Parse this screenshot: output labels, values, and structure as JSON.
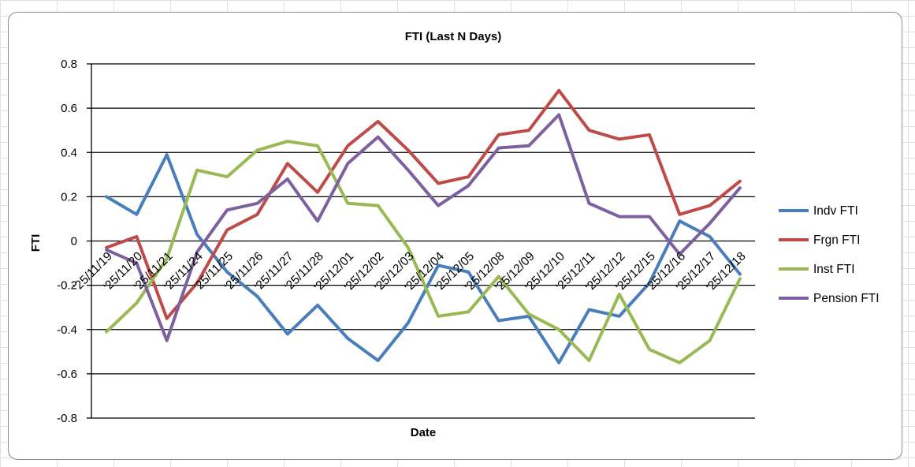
{
  "chart_data": {
    "type": "line",
    "title": "FTI (Last N Days)",
    "xlabel": "Date",
    "ylabel": "FTI",
    "ylim": [
      -0.8,
      0.8
    ],
    "yticks": [
      "0.8",
      "0.6",
      "0.4",
      "0.2",
      "0",
      "-0.2",
      "-0.4",
      "-0.6",
      "-0.8"
    ],
    "ytick_values": [
      0.8,
      0.6,
      0.4,
      0.2,
      0,
      -0.2,
      -0.4,
      -0.6,
      -0.8
    ],
    "grid": true,
    "legend_position": "right",
    "categories": [
      "'25/11/19",
      "'25/11/20",
      "'25/11/21",
      "'25/11/24",
      "'25/11/25",
      "'25/11/26",
      "'25/11/27",
      "'25/11/28",
      "'25/12/01",
      "'25/12/02",
      "'25/12/03",
      "'25/12/04",
      "'25/12/05",
      "'25/12/08",
      "'25/12/09",
      "'25/12/10",
      "'25/12/11",
      "'25/12/12",
      "'25/12/15",
      "'25/12/16",
      "'25/12/17",
      "'25/12/18"
    ],
    "series": [
      {
        "name": "Indv FTI",
        "color": "#4a7ebb",
        "values": [
          0.2,
          0.12,
          0.39,
          0.03,
          -0.14,
          -0.25,
          -0.42,
          -0.29,
          -0.44,
          -0.54,
          -0.37,
          -0.11,
          -0.14,
          -0.36,
          -0.34,
          -0.55,
          -0.31,
          -0.34,
          -0.19,
          0.09,
          0.02,
          -0.15
        ]
      },
      {
        "name": "Frgn FTI",
        "color": "#be4b48",
        "values": [
          -0.03,
          0.02,
          -0.35,
          -0.19,
          0.05,
          0.12,
          0.35,
          0.22,
          0.43,
          0.54,
          0.41,
          0.26,
          0.29,
          0.48,
          0.5,
          0.68,
          0.5,
          0.46,
          0.48,
          0.12,
          0.16,
          0.27
        ]
      },
      {
        "name": "Inst FTI",
        "color": "#98b954",
        "values": [
          -0.41,
          -0.28,
          -0.08,
          0.32,
          0.29,
          0.41,
          0.45,
          0.43,
          0.17,
          0.16,
          -0.03,
          -0.34,
          -0.32,
          -0.16,
          -0.33,
          -0.4,
          -0.54,
          -0.24,
          -0.49,
          -0.55,
          -0.45,
          -0.17
        ]
      },
      {
        "name": "Pension FTI",
        "color": "#7d60a0",
        "values": [
          -0.04,
          -0.1,
          -0.45,
          -0.05,
          0.14,
          0.17,
          0.28,
          0.09,
          0.35,
          0.47,
          0.32,
          0.16,
          0.25,
          0.42,
          0.43,
          0.57,
          0.17,
          0.11,
          0.11,
          -0.06,
          0.08,
          0.24
        ]
      }
    ]
  }
}
